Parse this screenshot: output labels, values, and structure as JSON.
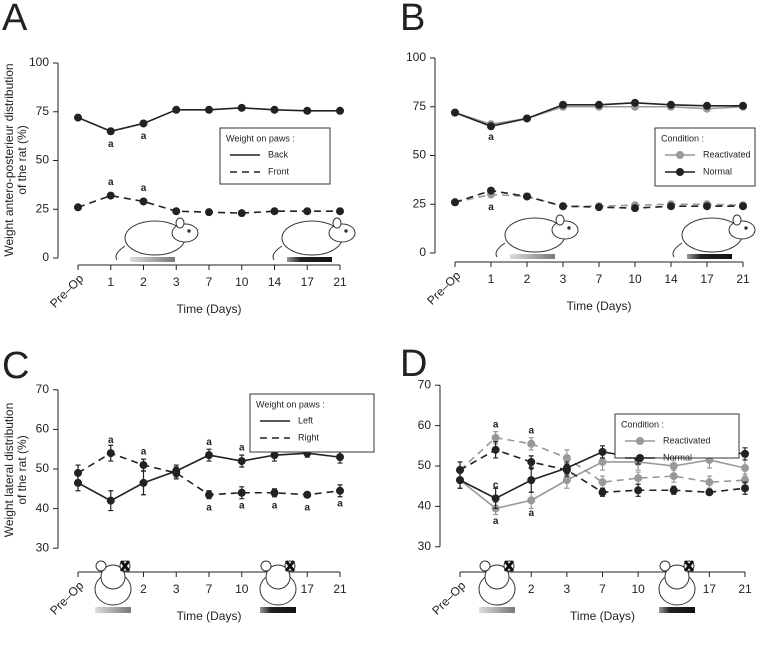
{
  "chart_data": [
    {
      "type": "line",
      "panel_label": "A",
      "y_label": [
        "Weight antero-posterieur distribution",
        "of the rat (%)"
      ],
      "x_label": "Time (Days)",
      "categories": [
        "Pre–Op",
        "1",
        "2",
        "3",
        "7",
        "10",
        "14",
        "17",
        "21"
      ],
      "ylim": [
        0,
        100
      ],
      "yticks": [
        0,
        25,
        50,
        75,
        100
      ],
      "legend_title": "Weight on paws :",
      "series": [
        {
          "name": "Back",
          "color": "#222222",
          "dash": false,
          "values": [
            72,
            65,
            69,
            76,
            76,
            77,
            76,
            75.5,
            75.5
          ]
        },
        {
          "name": "Front",
          "color": "#222222",
          "dash": true,
          "values": [
            26,
            32,
            29,
            24,
            23.5,
            23,
            24,
            24,
            24
          ]
        }
      ],
      "annotations": [
        {
          "series": 0,
          "line": "values",
          "index": 1,
          "side": "below",
          "text": "a"
        },
        {
          "series": 0,
          "line": "values",
          "index": 2,
          "side": "below",
          "text": "a"
        },
        {
          "series": 1,
          "line": "values",
          "index": 1,
          "side": "above",
          "text": "a"
        },
        {
          "series": 1,
          "line": "values",
          "index": 2,
          "side": "above",
          "text": "a"
        }
      ]
    },
    {
      "type": "line",
      "panel_label": "B",
      "x_label": "Time (Days)",
      "categories": [
        "Pre–Op",
        "1",
        "2",
        "3",
        "7",
        "10",
        "14",
        "17",
        "21"
      ],
      "ylim": [
        0,
        100
      ],
      "yticks": [
        0,
        25,
        50,
        75,
        100
      ],
      "legend_title": "Condition :",
      "series": [
        {
          "name": "Reactivated",
          "color": "#999999",
          "values": [
            72,
            66,
            69,
            75,
            75,
            75,
            75,
            74,
            75
          ],
          "dashed_values": [
            26,
            30,
            29,
            24,
            24,
            24.5,
            25,
            25,
            24.5
          ]
        },
        {
          "name": "Normal",
          "color": "#222222",
          "values": [
            72,
            65,
            69,
            76,
            76,
            77,
            76,
            75.5,
            75.5
          ],
          "dashed_values": [
            26,
            32,
            29,
            24,
            23.5,
            23,
            24,
            24,
            24
          ]
        }
      ],
      "annotations": [
        {
          "series": 0,
          "line": "values",
          "index": 1,
          "side": "below",
          "text": "a"
        },
        {
          "series": 0,
          "line": "dashed_values",
          "index": 1,
          "side": "below",
          "text": "a"
        }
      ]
    },
    {
      "type": "line",
      "panel_label": "C",
      "y_label": [
        "Weight lateral distribution",
        "of the rat (%)"
      ],
      "x_label": "Time (Days)",
      "categories": [
        "Pre–Op",
        "1",
        "2",
        "3",
        "7",
        "10",
        "14",
        "17",
        "21"
      ],
      "ylim": [
        25,
        75
      ],
      "yticks": [
        30,
        40,
        50,
        60,
        70
      ],
      "legend_title": "Weight on paws :",
      "series": [
        {
          "name": "Left",
          "color": "#222222",
          "dash": false,
          "values": [
            46.5,
            42,
            46.5,
            49.5,
            53.5,
            52,
            53.5,
            54,
            53
          ],
          "errors": [
            2,
            2.5,
            3,
            1.5,
            1.5,
            1.5,
            1.5,
            1,
            1.5
          ]
        },
        {
          "name": "Right",
          "color": "#222222",
          "dash": true,
          "values": [
            49,
            54,
            51,
            49,
            43.5,
            44,
            44,
            43.5,
            44.5
          ],
          "errors": [
            2,
            2,
            1.5,
            1.5,
            1,
            1.5,
            1,
            0.5,
            1.5
          ]
        }
      ],
      "annotations": [
        {
          "series": 1,
          "line": "values",
          "index": 1,
          "side": "above",
          "text": "a"
        },
        {
          "series": 1,
          "line": "values",
          "index": 2,
          "side": "above",
          "text": "a"
        },
        {
          "series": 0,
          "line": "values",
          "index": 4,
          "side": "above",
          "text": "a"
        },
        {
          "series": 0,
          "line": "values",
          "index": 5,
          "side": "above",
          "text": "a"
        },
        {
          "series": 0,
          "line": "values",
          "index": 6,
          "side": "above",
          "text": "a"
        },
        {
          "series": 0,
          "line": "values",
          "index": 7,
          "side": "above",
          "text": "a"
        },
        {
          "series": 0,
          "line": "values",
          "index": 8,
          "side": "above",
          "text": "a"
        },
        {
          "series": 1,
          "line": "values",
          "index": 4,
          "side": "below",
          "text": "a"
        },
        {
          "series": 1,
          "line": "values",
          "index": 5,
          "side": "below",
          "text": "a"
        },
        {
          "series": 1,
          "line": "values",
          "index": 6,
          "side": "below",
          "text": "a"
        },
        {
          "series": 1,
          "line": "values",
          "index": 7,
          "side": "below",
          "text": "a"
        },
        {
          "series": 1,
          "line": "values",
          "index": 8,
          "side": "below",
          "text": "a"
        }
      ]
    },
    {
      "type": "line",
      "panel_label": "D",
      "x_label": "Time (Days)",
      "categories": [
        "Pre–Op",
        "1",
        "2",
        "3",
        "7",
        "10",
        "14",
        "17",
        "21"
      ],
      "ylim": [
        25,
        75
      ],
      "yticks": [
        30,
        40,
        50,
        60,
        70
      ],
      "legend_title": "Condition :",
      "series": [
        {
          "name": "Reactivated",
          "color": "#999999",
          "values": [
            46.5,
            39.5,
            41.5,
            46.5,
            51,
            51,
            50,
            51.5,
            49.5
          ],
          "errors": [
            2,
            1.5,
            2,
            2,
            2,
            2,
            2,
            2,
            2
          ],
          "dashed_values": [
            49,
            57,
            55.5,
            52,
            46,
            47,
            47.5,
            46,
            46.5
          ],
          "dashed_errors": [
            2,
            1.5,
            1.5,
            2,
            1.5,
            1.5,
            1.5,
            1.5,
            1.5
          ]
        },
        {
          "name": "Normal",
          "color": "#222222",
          "values": [
            46.5,
            42,
            46.5,
            49.5,
            53.5,
            52,
            53.5,
            54,
            53
          ],
          "errors": [
            2,
            2.5,
            3,
            1.5,
            1.5,
            1.5,
            1.5,
            1,
            1.5
          ],
          "dashed_values": [
            49,
            54,
            51,
            49,
            43.5,
            44,
            44,
            43.5,
            44.5
          ],
          "dashed_errors": [
            2,
            2,
            1.5,
            1.5,
            1,
            1.5,
            1,
            0.5,
            1.5
          ]
        }
      ],
      "annotations": [
        {
          "series": 0,
          "line": "dashed_values",
          "index": 1,
          "side": "above",
          "text": "a"
        },
        {
          "series": 0,
          "line": "dashed_values",
          "index": 2,
          "side": "above",
          "text": "a"
        },
        {
          "series": 0,
          "line": "values",
          "index": 1,
          "side": "below",
          "text": "a"
        },
        {
          "series": 0,
          "line": "values",
          "index": 2,
          "side": "below",
          "text": "a"
        },
        {
          "series": 1,
          "line": "values",
          "index": 1,
          "side": "above",
          "text": "c"
        },
        {
          "series": 1,
          "line": "values",
          "index": 2,
          "side": "above",
          "text": "c"
        }
      ]
    }
  ]
}
